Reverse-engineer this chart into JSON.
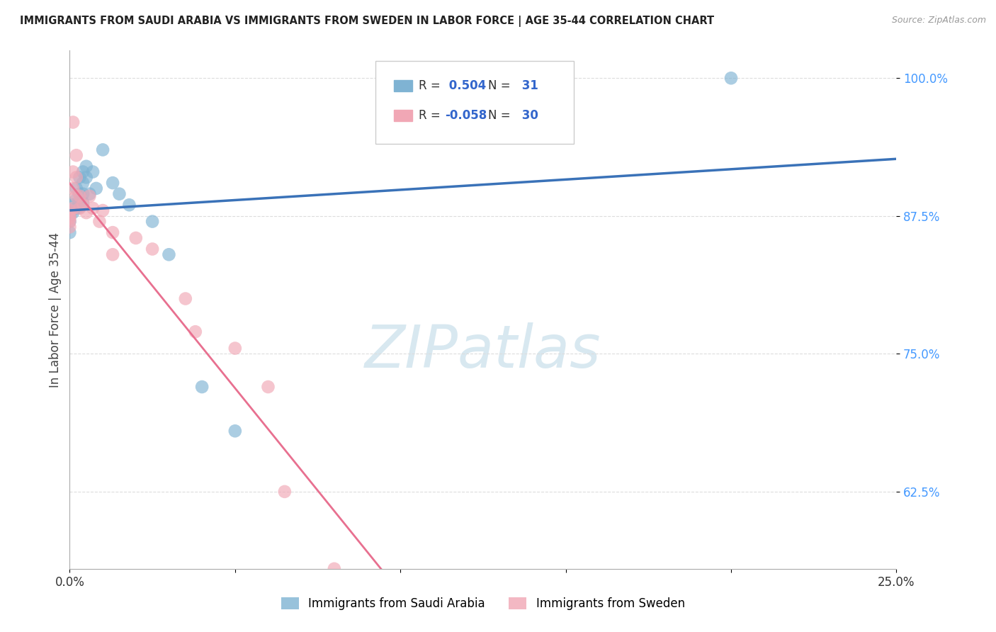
{
  "title": "IMMIGRANTS FROM SAUDI ARABIA VS IMMIGRANTS FROM SWEDEN IN LABOR FORCE | AGE 35-44 CORRELATION CHART",
  "source": "Source: ZipAtlas.com",
  "ylabel": "In Labor Force | Age 35-44",
  "xlim": [
    0.0,
    0.25
  ],
  "ylim": [
    0.555,
    1.025
  ],
  "yticks": [
    0.625,
    0.75,
    0.875,
    1.0
  ],
  "ytick_labels": [
    "62.5%",
    "75.0%",
    "87.5%",
    "100.0%"
  ],
  "xticks": [
    0.0,
    0.05,
    0.1,
    0.15,
    0.2,
    0.25
  ],
  "xtick_labels": [
    "0.0%",
    "",
    "",
    "",
    "",
    "25.0%"
  ],
  "saudi_color": "#7FB3D3",
  "sweden_color": "#F1A7B5",
  "saudi_points": [
    [
      0.0,
      0.88
    ],
    [
      0.0,
      0.875
    ],
    [
      0.0,
      0.87
    ],
    [
      0.001,
      0.885
    ],
    [
      0.001,
      0.878
    ],
    [
      0.002,
      0.9
    ],
    [
      0.002,
      0.89
    ],
    [
      0.002,
      0.882
    ],
    [
      0.003,
      0.91
    ],
    [
      0.003,
      0.895
    ],
    [
      0.003,
      0.888
    ],
    [
      0.003,
      0.883
    ],
    [
      0.004,
      0.915
    ],
    [
      0.004,
      0.905
    ],
    [
      0.004,
      0.895
    ],
    [
      0.004,
      0.887
    ],
    [
      0.005,
      0.92
    ],
    [
      0.005,
      0.91
    ],
    [
      0.006,
      0.895
    ],
    [
      0.007,
      0.915
    ],
    [
      0.008,
      0.9
    ],
    [
      0.01,
      0.935
    ],
    [
      0.013,
      0.905
    ],
    [
      0.015,
      0.895
    ],
    [
      0.018,
      0.885
    ],
    [
      0.025,
      0.87
    ],
    [
      0.03,
      0.84
    ],
    [
      0.04,
      0.72
    ],
    [
      0.05,
      0.68
    ],
    [
      0.2,
      1.0
    ],
    [
      0.0,
      0.86
    ]
  ],
  "sweden_points": [
    [
      0.0,
      0.88
    ],
    [
      0.0,
      0.875
    ],
    [
      0.0,
      0.873
    ],
    [
      0.0,
      0.87
    ],
    [
      0.0,
      0.865
    ],
    [
      0.001,
      0.96
    ],
    [
      0.001,
      0.915
    ],
    [
      0.001,
      0.9
    ],
    [
      0.001,
      0.882
    ],
    [
      0.002,
      0.93
    ],
    [
      0.002,
      0.91
    ],
    [
      0.002,
      0.893
    ],
    [
      0.003,
      0.893
    ],
    [
      0.003,
      0.882
    ],
    [
      0.004,
      0.885
    ],
    [
      0.005,
      0.878
    ],
    [
      0.006,
      0.893
    ],
    [
      0.007,
      0.882
    ],
    [
      0.009,
      0.87
    ],
    [
      0.01,
      0.88
    ],
    [
      0.013,
      0.86
    ],
    [
      0.013,
      0.84
    ],
    [
      0.02,
      0.855
    ],
    [
      0.025,
      0.845
    ],
    [
      0.035,
      0.8
    ],
    [
      0.038,
      0.77
    ],
    [
      0.05,
      0.755
    ],
    [
      0.06,
      0.72
    ],
    [
      0.065,
      0.625
    ],
    [
      0.08,
      0.555
    ]
  ],
  "blue_line_color": "#3A72B8",
  "pink_line_color": "#E87090",
  "watermark_text": "ZIPatlas",
  "watermark_color": "#D8E8F0",
  "watermark_fontsize": 60,
  "background_color": "#FFFFFF",
  "grid_color": "#DDDDDD",
  "R_saudi": 0.504,
  "N_saudi": 31,
  "R_sweden": -0.058,
  "N_sweden": 30
}
